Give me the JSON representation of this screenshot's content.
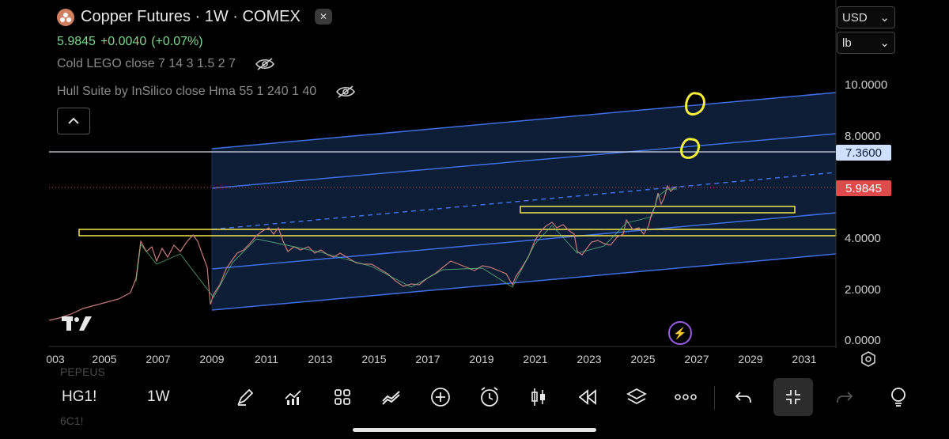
{
  "header": {
    "title": "Copper Futures · 1W · COMEX",
    "price": "5.9845",
    "change": "+0.0040",
    "change_pct": "(+0.07%)",
    "indicators": [
      "Cold LEGO close 7 14 3 1.5 2 7",
      "Hull Suite by InSilico close Hma 55 1 240 1 40"
    ]
  },
  "currency": {
    "value": "USD",
    "unit": "lb"
  },
  "axis": {
    "y_labels": [
      "10.0000",
      "8.0000",
      "4.0000",
      "2.0000",
      "0.0000"
    ],
    "horizontal_line_label": "7.3600",
    "last_price_label": "5.9845",
    "x_labels": [
      "003",
      "2005",
      "2007",
      "2009",
      "2011",
      "2013",
      "2015",
      "2017",
      "2019",
      "2021",
      "2023",
      "2025",
      "2027",
      "2029",
      "2031"
    ]
  },
  "toolbar": {
    "symbol": "HG1!",
    "interval": "1W",
    "ghost_above": "PEPEUS",
    "ghost_below": "6C1!",
    "icons": [
      "brush-icon",
      "indicators-icon",
      "layout-icon",
      "compare-icon",
      "add-icon",
      "alert-icon",
      "candles-icon",
      "replay-icon",
      "layers-icon",
      "more-icon",
      "undo-icon",
      "collapse-icon",
      "redo-icon",
      "bulb-icon"
    ]
  },
  "colors": {
    "accent_blue": "#3f6fe6",
    "channel_fill": "#0e1f38",
    "highlight_yellow": "#f2e84b",
    "price_tag_red": "#e04a4a",
    "hline_tag_blue": "#cfe0ff",
    "up_green": "#7bd88f"
  }
}
